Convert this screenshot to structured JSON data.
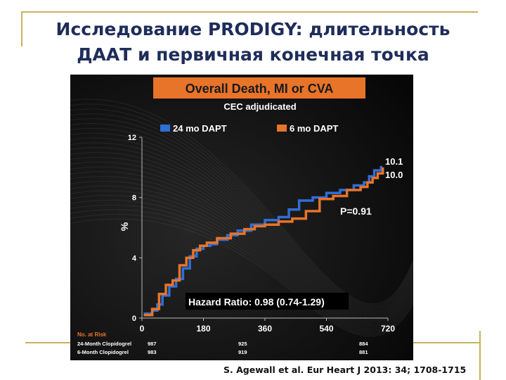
{
  "slide": {
    "title_line1": "Исследование PRODIGY: длительность",
    "title_line2": "ДААТ и первичная конечная точка",
    "citation": "S. Agewall et al. Eur Heart J 2013: 34; 1708-1715"
  },
  "colors": {
    "accent_frame": "#c8b25a",
    "title_text": "#1f2d5a",
    "panel_bg": "#0d0d0d",
    "banner_bg": "#e8742a",
    "series_24mo": "#2f6fd6",
    "series_6mo": "#e8742a",
    "risk_label": "#e8742a"
  },
  "chart_data": {
    "type": "line",
    "title": "Overall Death, MI or CVA",
    "subtitle": "CEC adjudicated",
    "ylabel": "%",
    "xlabel": "",
    "xlim": [
      0,
      720
    ],
    "ylim": [
      0,
      12
    ],
    "x_ticks": [
      0,
      180,
      360,
      540,
      720
    ],
    "y_ticks": [
      0,
      4,
      8,
      12
    ],
    "legend_position": "top",
    "series": [
      {
        "name": "24 mo DAPT",
        "color": "#2f6fd6",
        "end_label": "10.1",
        "points": [
          [
            5,
            0.3
          ],
          [
            30,
            0.5
          ],
          [
            45,
            0.9
          ],
          [
            60,
            1.5
          ],
          [
            80,
            2.1
          ],
          [
            100,
            2.6
          ],
          [
            120,
            3.3
          ],
          [
            140,
            4.1
          ],
          [
            160,
            4.6
          ],
          [
            180,
            4.8
          ],
          [
            200,
            4.9
          ],
          [
            220,
            5.2
          ],
          [
            250,
            5.5
          ],
          [
            280,
            5.8
          ],
          [
            320,
            6.2
          ],
          [
            360,
            6.5
          ],
          [
            400,
            6.7
          ],
          [
            430,
            7.2
          ],
          [
            460,
            7.8
          ],
          [
            500,
            8.0
          ],
          [
            540,
            8.3
          ],
          [
            580,
            8.5
          ],
          [
            620,
            8.8
          ],
          [
            650,
            9.0
          ],
          [
            665,
            9.4
          ],
          [
            680,
            9.8
          ],
          [
            700,
            10.1
          ]
        ]
      },
      {
        "name": "6 mo DAPT",
        "color": "#e8742a",
        "end_label": "10.0",
        "points": [
          [
            5,
            0.2
          ],
          [
            30,
            0.6
          ],
          [
            50,
            1.6
          ],
          [
            70,
            2.2
          ],
          [
            90,
            2.5
          ],
          [
            110,
            3.5
          ],
          [
            130,
            4.0
          ],
          [
            150,
            4.5
          ],
          [
            170,
            4.8
          ],
          [
            190,
            5.0
          ],
          [
            220,
            5.3
          ],
          [
            260,
            5.6
          ],
          [
            300,
            5.9
          ],
          [
            330,
            6.1
          ],
          [
            360,
            6.2
          ],
          [
            400,
            6.4
          ],
          [
            440,
            6.6
          ],
          [
            480,
            7.1
          ],
          [
            520,
            7.9
          ],
          [
            560,
            8.1
          ],
          [
            600,
            8.5
          ],
          [
            640,
            8.7
          ],
          [
            660,
            9.0
          ],
          [
            675,
            9.3
          ],
          [
            690,
            9.6
          ],
          [
            705,
            10.0
          ]
        ]
      }
    ],
    "annotations": {
      "p_value": "P=0.91",
      "hazard_ratio": "Hazard Ratio: 0.98 (0.74-1.29)"
    },
    "risk_table": {
      "label": "No. at Risk",
      "rows": [
        {
          "name": "24-Month Clopidogrel",
          "values": [
            "987",
            "925",
            "884"
          ]
        },
        {
          "name": "6-Month Clopidogrel",
          "values": [
            "983",
            "919",
            "881"
          ]
        }
      ]
    }
  }
}
